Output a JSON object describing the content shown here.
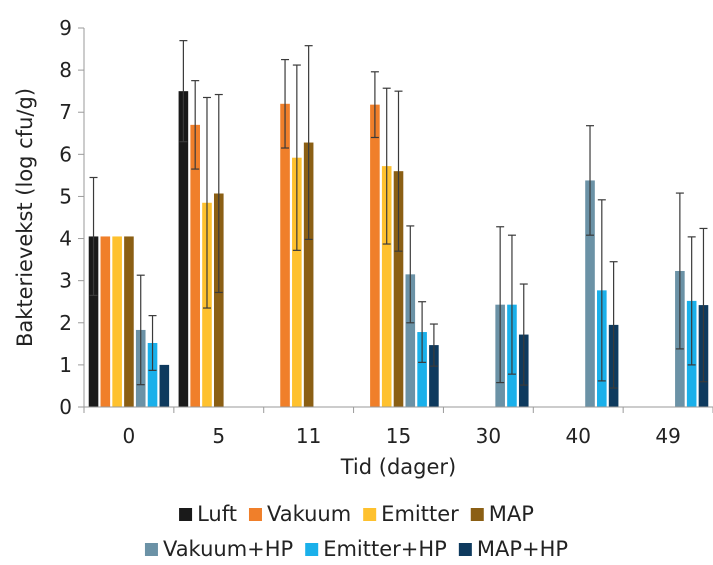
{
  "chart_data": {
    "type": "bar",
    "title": "",
    "xlabel": "Tid (dager)",
    "ylabel": "Bakterievekst (log cfu/g)",
    "ylim": [
      0,
      9
    ],
    "yticks": [
      "0",
      "1",
      "2",
      "3",
      "4",
      "5",
      "6",
      "7",
      "8",
      "9"
    ],
    "grid": false,
    "legend_position": "bottom",
    "categories": [
      "0",
      "5",
      "11",
      "15",
      "30",
      "40",
      "49"
    ],
    "series": [
      {
        "name": "Luft",
        "color": "#1a1a1a",
        "values": [
          4.05,
          7.5,
          null,
          null,
          null,
          null,
          null
        ],
        "errors": [
          1.4,
          1.2,
          null,
          null,
          null,
          null,
          null
        ]
      },
      {
        "name": "Vakuum",
        "color": "#f07f2a",
        "values": [
          4.05,
          6.7,
          7.2,
          7.18,
          null,
          null,
          null
        ],
        "errors": [
          0,
          1.05,
          1.05,
          0.78,
          null,
          null,
          null
        ]
      },
      {
        "name": "Emitter",
        "color": "#fec12e",
        "values": [
          4.05,
          4.85,
          5.92,
          5.72,
          null,
          null,
          null
        ],
        "errors": [
          0,
          2.5,
          2.2,
          1.85,
          null,
          null,
          null
        ]
      },
      {
        "name": "MAP",
        "color": "#8b5f14",
        "values": [
          4.05,
          5.07,
          6.28,
          5.6,
          null,
          null,
          null
        ],
        "errors": [
          0,
          2.35,
          2.3,
          1.9,
          null,
          null,
          null
        ]
      },
      {
        "name": "Vakuum+HP",
        "color": "#6b92a6",
        "values": [
          1.83,
          null,
          null,
          3.15,
          2.43,
          5.38,
          3.23
        ],
        "errors": [
          1.3,
          null,
          null,
          1.15,
          1.85,
          1.3,
          1.85
        ]
      },
      {
        "name": "Emitter+HP",
        "color": "#1ab0ea",
        "values": [
          1.52,
          null,
          null,
          1.78,
          2.43,
          2.77,
          2.52
        ],
        "errors": [
          0.65,
          null,
          null,
          0.72,
          1.65,
          2.15,
          1.52
        ]
      },
      {
        "name": "MAP+HP",
        "color": "#0e3a5e",
        "values": [
          1.0,
          null,
          null,
          1.47,
          1.72,
          1.95,
          2.42
        ],
        "errors": [
          0,
          null,
          null,
          0.5,
          1.2,
          1.5,
          1.82
        ]
      }
    ]
  }
}
